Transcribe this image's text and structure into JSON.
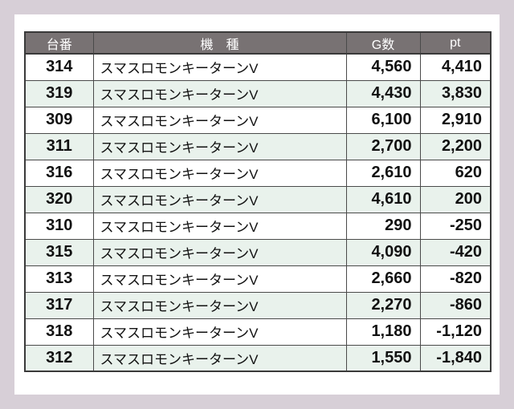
{
  "colors": {
    "page_background": "#d7cfd7",
    "card_background": "#ffffff",
    "header_background": "#787273",
    "header_text": "#ffffff",
    "row_alt_background": "#e9f2ec",
    "border": "#4a4a4a",
    "text": "#111111"
  },
  "table": {
    "header_labels": [
      "台番",
      "機　種",
      "G数",
      "pt"
    ],
    "rows": [
      {
        "dai": "314",
        "kishu": "スマスロモンキーターンV",
        "g": "4,560",
        "pt": "4,410"
      },
      {
        "dai": "319",
        "kishu": "スマスロモンキーターンV",
        "g": "4,430",
        "pt": "3,830"
      },
      {
        "dai": "309",
        "kishu": "スマスロモンキーターンV",
        "g": "6,100",
        "pt": "2,910"
      },
      {
        "dai": "311",
        "kishu": "スマスロモンキーターンV",
        "g": "2,700",
        "pt": "2,200"
      },
      {
        "dai": "316",
        "kishu": "スマスロモンキーターンV",
        "g": "2,610",
        "pt": "620"
      },
      {
        "dai": "320",
        "kishu": "スマスロモンキーターンV",
        "g": "4,610",
        "pt": "200"
      },
      {
        "dai": "310",
        "kishu": "スマスロモンキーターンV",
        "g": "290",
        "pt": "-250"
      },
      {
        "dai": "315",
        "kishu": "スマスロモンキーターンV",
        "g": "4,090",
        "pt": "-420"
      },
      {
        "dai": "313",
        "kishu": "スマスロモンキーターンV",
        "g": "2,660",
        "pt": "-820"
      },
      {
        "dai": "317",
        "kishu": "スマスロモンキーターンV",
        "g": "2,270",
        "pt": "-860"
      },
      {
        "dai": "318",
        "kishu": "スマスロモンキーターンV",
        "g": "1,180",
        "pt": "-1,120"
      },
      {
        "dai": "312",
        "kishu": "スマスロモンキーターンV",
        "g": "1,550",
        "pt": "-1,840"
      }
    ]
  }
}
